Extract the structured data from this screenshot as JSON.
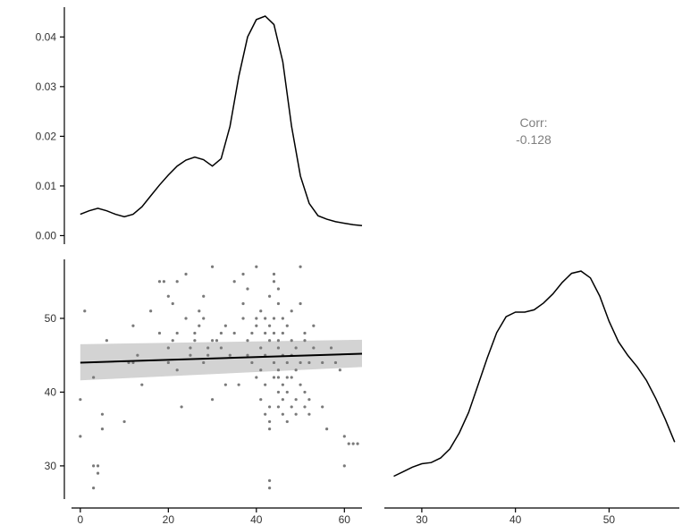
{
  "chart_data": [
    {
      "panel": "density-1",
      "type": "line",
      "x": [
        0,
        2,
        4,
        6,
        8,
        10,
        12,
        14,
        16,
        18,
        20,
        22,
        24,
        26,
        28,
        30,
        32,
        34,
        36,
        38,
        40,
        42,
        44,
        46,
        48,
        50,
        52,
        54,
        56,
        58,
        60,
        62,
        64
      ],
      "y": [
        0.0043,
        0.005,
        0.0055,
        0.005,
        0.0043,
        0.0038,
        0.0043,
        0.0058,
        0.008,
        0.0102,
        0.0122,
        0.014,
        0.0152,
        0.0158,
        0.0153,
        0.014,
        0.0155,
        0.022,
        0.032,
        0.04,
        0.0435,
        0.0442,
        0.0425,
        0.035,
        0.022,
        0.012,
        0.0065,
        0.004,
        0.0033,
        0.0028,
        0.0025,
        0.0022,
        0.002
      ],
      "xlim": [
        -2,
        64
      ],
      "ylim": [
        -0.001,
        0.046
      ],
      "yticks": [
        "0.00",
        "0.01",
        "0.02",
        "0.03",
        "0.04"
      ],
      "yticks_values": [
        0,
        0.01,
        0.02,
        0.03,
        0.04
      ]
    },
    {
      "panel": "correlation",
      "type": "table",
      "label": "Corr:",
      "value": "-0.128"
    },
    {
      "panel": "scatter",
      "type": "scatter",
      "points": [
        [
          0,
          39
        ],
        [
          0,
          34
        ],
        [
          1,
          51
        ],
        [
          3,
          42
        ],
        [
          3,
          27
        ],
        [
          3,
          30
        ],
        [
          4,
          30
        ],
        [
          4,
          29
        ],
        [
          5,
          37
        ],
        [
          5,
          35
        ],
        [
          6,
          47
        ],
        [
          10,
          36
        ],
        [
          11,
          44
        ],
        [
          12,
          44
        ],
        [
          12,
          49
        ],
        [
          13,
          45
        ],
        [
          14,
          41
        ],
        [
          16,
          51
        ],
        [
          18,
          48
        ],
        [
          18,
          55
        ],
        [
          19,
          55
        ],
        [
          20,
          46
        ],
        [
          20,
          44
        ],
        [
          20,
          53
        ],
        [
          21,
          52
        ],
        [
          21,
          47
        ],
        [
          22,
          48
        ],
        [
          22,
          55
        ],
        [
          22,
          43
        ],
        [
          23,
          38
        ],
        [
          24,
          56
        ],
        [
          24,
          50
        ],
        [
          25,
          45
        ],
        [
          25,
          46
        ],
        [
          26,
          47
        ],
        [
          26,
          48
        ],
        [
          27,
          51
        ],
        [
          27,
          49
        ],
        [
          28,
          50
        ],
        [
          28,
          44
        ],
        [
          28,
          53
        ],
        [
          29,
          46
        ],
        [
          29,
          45
        ],
        [
          30,
          47
        ],
        [
          30,
          39
        ],
        [
          30,
          57
        ],
        [
          31,
          47
        ],
        [
          32,
          48
        ],
        [
          32,
          46
        ],
        [
          33,
          41
        ],
        [
          33,
          49
        ],
        [
          34,
          45
        ],
        [
          35,
          55
        ],
        [
          35,
          48
        ],
        [
          36,
          41
        ],
        [
          37,
          50
        ],
        [
          37,
          56
        ],
        [
          37,
          52
        ],
        [
          38,
          54
        ],
        [
          38,
          45
        ],
        [
          38,
          47
        ],
        [
          39,
          48
        ],
        [
          39,
          44
        ],
        [
          40,
          42
        ],
        [
          40,
          49
        ],
        [
          40,
          50
        ],
        [
          40,
          57
        ],
        [
          41,
          43
        ],
        [
          41,
          39
        ],
        [
          41,
          46
        ],
        [
          41,
          51
        ],
        [
          42,
          48
        ],
        [
          42,
          41
        ],
        [
          42,
          45
        ],
        [
          42,
          37
        ],
        [
          42,
          50
        ],
        [
          43,
          47
        ],
        [
          43,
          49
        ],
        [
          43,
          53
        ],
        [
          43,
          38
        ],
        [
          43,
          36
        ],
        [
          43,
          27
        ],
        [
          43,
          28
        ],
        [
          43,
          35
        ],
        [
          44,
          55
        ],
        [
          44,
          42
        ],
        [
          44,
          44
        ],
        [
          44,
          48
        ],
        [
          44,
          50
        ],
        [
          44,
          56
        ],
        [
          45,
          40
        ],
        [
          45,
          38
        ],
        [
          45,
          43
        ],
        [
          45,
          46
        ],
        [
          45,
          52
        ],
        [
          45,
          47
        ],
        [
          45,
          54
        ],
        [
          45,
          42
        ],
        [
          46,
          39
        ],
        [
          46,
          45
        ],
        [
          46,
          48
        ],
        [
          46,
          50
        ],
        [
          46,
          37
        ],
        [
          46,
          41
        ],
        [
          47,
          36
        ],
        [
          47,
          40
        ],
        [
          47,
          44
        ],
        [
          47,
          49
        ],
        [
          47,
          42
        ],
        [
          48,
          38
        ],
        [
          48,
          47
        ],
        [
          48,
          51
        ],
        [
          48,
          45
        ],
        [
          48,
          42
        ],
        [
          49,
          37
        ],
        [
          49,
          43
        ],
        [
          49,
          46
        ],
        [
          49,
          39
        ],
        [
          50,
          44
        ],
        [
          50,
          52
        ],
        [
          50,
          57
        ],
        [
          50,
          41
        ],
        [
          51,
          38
        ],
        [
          51,
          47
        ],
        [
          51,
          48
        ],
        [
          51,
          40
        ],
        [
          52,
          44
        ],
        [
          52,
          37
        ],
        [
          52,
          39
        ],
        [
          53,
          49
        ],
        [
          53,
          46
        ],
        [
          55,
          44
        ],
        [
          55,
          38
        ],
        [
          56,
          35
        ],
        [
          57,
          46
        ],
        [
          58,
          44
        ],
        [
          59,
          43
        ],
        [
          60,
          34
        ],
        [
          60,
          30
        ],
        [
          61,
          33
        ],
        [
          62,
          33
        ],
        [
          63,
          33
        ]
      ],
      "fit_x": [
        0,
        64
      ],
      "fit_y": [
        44.0,
        45.2
      ],
      "fit_lower": [
        41.6,
        43.4
      ],
      "fit_upper": [
        46.5,
        47.1
      ],
      "xlim": [
        -2,
        64
      ],
      "ylim": [
        25.5,
        58
      ],
      "xticks": [
        "0",
        "20",
        "40",
        "60"
      ],
      "xticks_values": [
        0,
        20,
        40,
        60
      ],
      "yticks": [
        "30",
        "40",
        "50"
      ],
      "yticks_values": [
        30,
        40,
        50
      ]
    },
    {
      "panel": "density-2",
      "type": "line",
      "x": [
        27,
        28,
        29,
        30,
        31,
        32,
        33,
        34,
        35,
        36,
        37,
        38,
        39,
        40,
        41,
        42,
        43,
        44,
        45,
        46,
        47,
        48,
        49,
        50,
        51,
        52,
        53,
        54,
        55,
        56,
        57
      ],
      "y": [
        0.01,
        0.012,
        0.014,
        0.0155,
        0.016,
        0.018,
        0.022,
        0.029,
        0.038,
        0.05,
        0.062,
        0.073,
        0.08,
        0.082,
        0.082,
        0.083,
        0.086,
        0.09,
        0.095,
        0.099,
        0.1,
        0.097,
        0.089,
        0.078,
        0.069,
        0.063,
        0.058,
        0.052,
        0.044,
        0.035,
        0.025
      ],
      "xlim": [
        26,
        57.5
      ],
      "ylim": [
        0,
        0.102
      ],
      "xticks": [
        "30",
        "40",
        "50"
      ],
      "xticks_values": [
        30,
        40,
        50
      ]
    }
  ]
}
